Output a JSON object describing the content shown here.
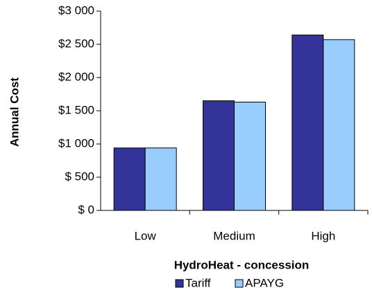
{
  "chart_data": {
    "type": "bar",
    "x_label": "HydroHeat - concession",
    "y_label": "Annual Cost",
    "categories": [
      "Low",
      "Medium",
      "High"
    ],
    "series": [
      {
        "name": "Tariff",
        "color": "#333399",
        "values": [
          940,
          1650,
          2640
        ]
      },
      {
        "name": "APAYG",
        "color": "#99ccff",
        "values": [
          940,
          1630,
          2570
        ]
      }
    ],
    "ylim": [
      0,
      3000
    ],
    "yticks": [
      {
        "value": 0,
        "label": "$ 0"
      },
      {
        "value": 500,
        "label": "$ 500"
      },
      {
        "value": 1000,
        "label": "$1 000"
      },
      {
        "value": 1500,
        "label": "$1 500"
      },
      {
        "value": 2000,
        "label": "$2 000"
      },
      {
        "value": 2500,
        "label": "$2 500"
      },
      {
        "value": 3000,
        "label": "$3 000"
      }
    ],
    "legend": "bottom"
  }
}
